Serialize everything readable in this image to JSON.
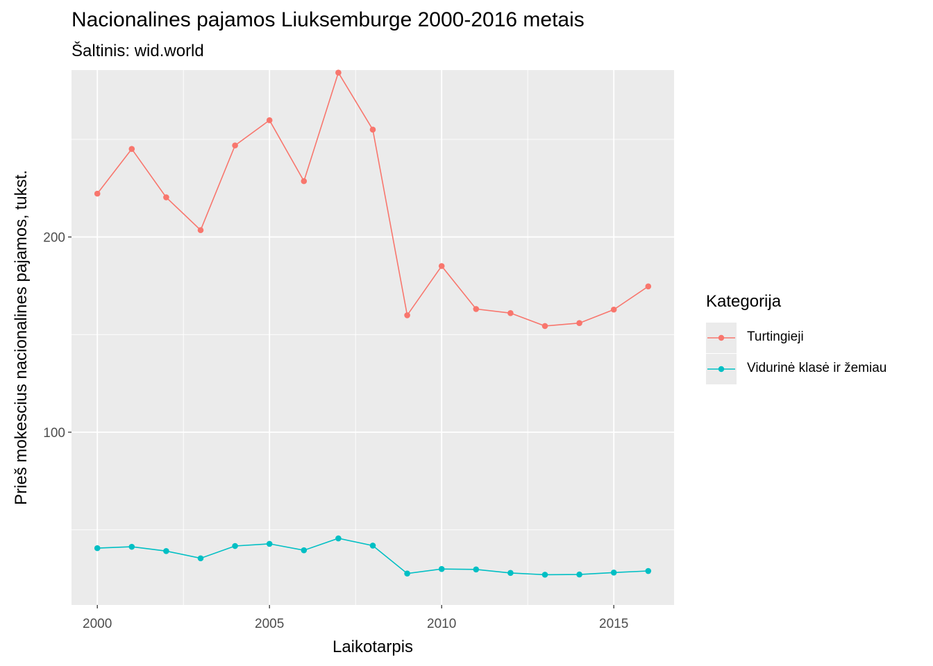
{
  "title": "Nacionalines pajamos Liuksemburge 2000-2016 metais",
  "subtitle": "Šaltinis: wid.world",
  "legend": {
    "title": "Kategorija",
    "items": [
      {
        "label": "Turtingieji",
        "color": "#F8766D"
      },
      {
        "label": "Vidurinė klasė ir žemiau",
        "color": "#00BFC4"
      }
    ]
  },
  "chart_data": {
    "type": "line",
    "title": "Nacionalines pajamos Liuksemburge 2000-2016 metais",
    "subtitle": "Šaltinis: wid.world",
    "xlabel": "Laikotarpis",
    "ylabel": "Prieš mokescius nacionalines pajamos, tukst.",
    "x": [
      2000,
      2001,
      2002,
      2003,
      2004,
      2005,
      2006,
      2007,
      2008,
      2009,
      2010,
      2011,
      2012,
      2013,
      2014,
      2015,
      2016
    ],
    "xlim": [
      1999.25,
      2016.75
    ],
    "ylim": [
      11.5,
      285.5
    ],
    "x_ticks": [
      2000,
      2005,
      2010,
      2015
    ],
    "y_ticks": [
      100,
      200
    ],
    "grid": true,
    "legend_position": "right",
    "series": [
      {
        "name": "Turtingieji",
        "color": "#F8766D",
        "values": [
          222.2,
          245.1,
          220.3,
          203.5,
          246.9,
          259.8,
          228.6,
          284.2,
          255.0,
          159.9,
          185.1,
          163.1,
          161.0,
          154.4,
          155.9,
          162.8,
          174.7
        ]
      },
      {
        "name": "Vidurinė klasė ir žemiau",
        "color": "#00BFC4",
        "values": [
          40.6,
          41.3,
          39.1,
          35.4,
          41.7,
          42.8,
          39.5,
          45.6,
          41.9,
          27.6,
          29.9,
          29.7,
          27.9,
          27.0,
          27.1,
          28.1,
          28.9
        ]
      }
    ]
  }
}
